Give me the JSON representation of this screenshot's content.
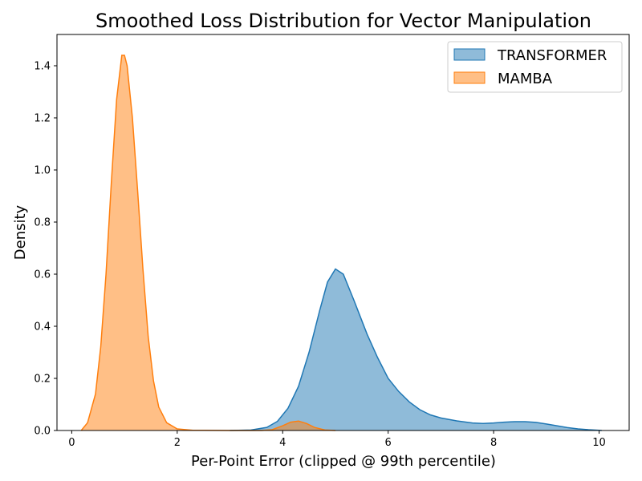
{
  "chart_data": {
    "type": "area",
    "title": "Smoothed Loss Distribution for Vector Manipulation",
    "xlabel": "Per-Point Error (clipped @ 99th percentile)",
    "ylabel": "Density",
    "xlim": [
      -0.28,
      10.57
    ],
    "ylim": [
      0,
      1.52
    ],
    "xticks": [
      0,
      2,
      4,
      6,
      8,
      10
    ],
    "yticks": [
      0.0,
      0.2,
      0.4,
      0.6,
      0.8,
      1.0,
      1.2,
      1.4
    ],
    "grid": false,
    "legend_position": "upper right",
    "series": [
      {
        "name": "TRANSFORMER",
        "color": "#1f77b4",
        "points": [
          [
            3.0,
            0.0
          ],
          [
            3.4,
            0.002
          ],
          [
            3.7,
            0.012
          ],
          [
            3.9,
            0.035
          ],
          [
            4.1,
            0.085
          ],
          [
            4.3,
            0.17
          ],
          [
            4.5,
            0.3
          ],
          [
            4.7,
            0.46
          ],
          [
            4.85,
            0.57
          ],
          [
            5.0,
            0.62
          ],
          [
            5.15,
            0.6
          ],
          [
            5.35,
            0.5
          ],
          [
            5.6,
            0.37
          ],
          [
            5.8,
            0.28
          ],
          [
            6.0,
            0.2
          ],
          [
            6.2,
            0.15
          ],
          [
            6.4,
            0.11
          ],
          [
            6.6,
            0.08
          ],
          [
            6.8,
            0.06
          ],
          [
            7.0,
            0.048
          ],
          [
            7.3,
            0.037
          ],
          [
            7.6,
            0.029
          ],
          [
            7.8,
            0.027
          ],
          [
            8.0,
            0.029
          ],
          [
            8.2,
            0.032
          ],
          [
            8.4,
            0.034
          ],
          [
            8.6,
            0.034
          ],
          [
            8.8,
            0.031
          ],
          [
            9.0,
            0.025
          ],
          [
            9.2,
            0.018
          ],
          [
            9.4,
            0.011
          ],
          [
            9.6,
            0.006
          ],
          [
            9.8,
            0.003
          ],
          [
            10.0,
            0.001
          ],
          [
            10.05,
            0.0
          ]
        ]
      },
      {
        "name": "MAMBA",
        "color": "#ff7f0e",
        "points": [
          [
            0.18,
            0.0
          ],
          [
            0.3,
            0.03
          ],
          [
            0.45,
            0.14
          ],
          [
            0.55,
            0.32
          ],
          [
            0.65,
            0.6
          ],
          [
            0.75,
            0.95
          ],
          [
            0.85,
            1.27
          ],
          [
            0.95,
            1.44
          ],
          [
            1.0,
            1.44
          ],
          [
            1.05,
            1.4
          ],
          [
            1.15,
            1.2
          ],
          [
            1.25,
            0.92
          ],
          [
            1.35,
            0.62
          ],
          [
            1.45,
            0.36
          ],
          [
            1.55,
            0.19
          ],
          [
            1.65,
            0.09
          ],
          [
            1.8,
            0.03
          ],
          [
            2.0,
            0.006
          ],
          [
            2.3,
            0.001
          ],
          [
            3.0,
            0.0
          ],
          [
            3.6,
            0.0
          ],
          [
            3.8,
            0.003
          ],
          [
            4.0,
            0.018
          ],
          [
            4.15,
            0.032
          ],
          [
            4.3,
            0.036
          ],
          [
            4.45,
            0.027
          ],
          [
            4.6,
            0.012
          ],
          [
            4.8,
            0.002
          ],
          [
            5.0,
            0.0
          ]
        ]
      }
    ]
  }
}
